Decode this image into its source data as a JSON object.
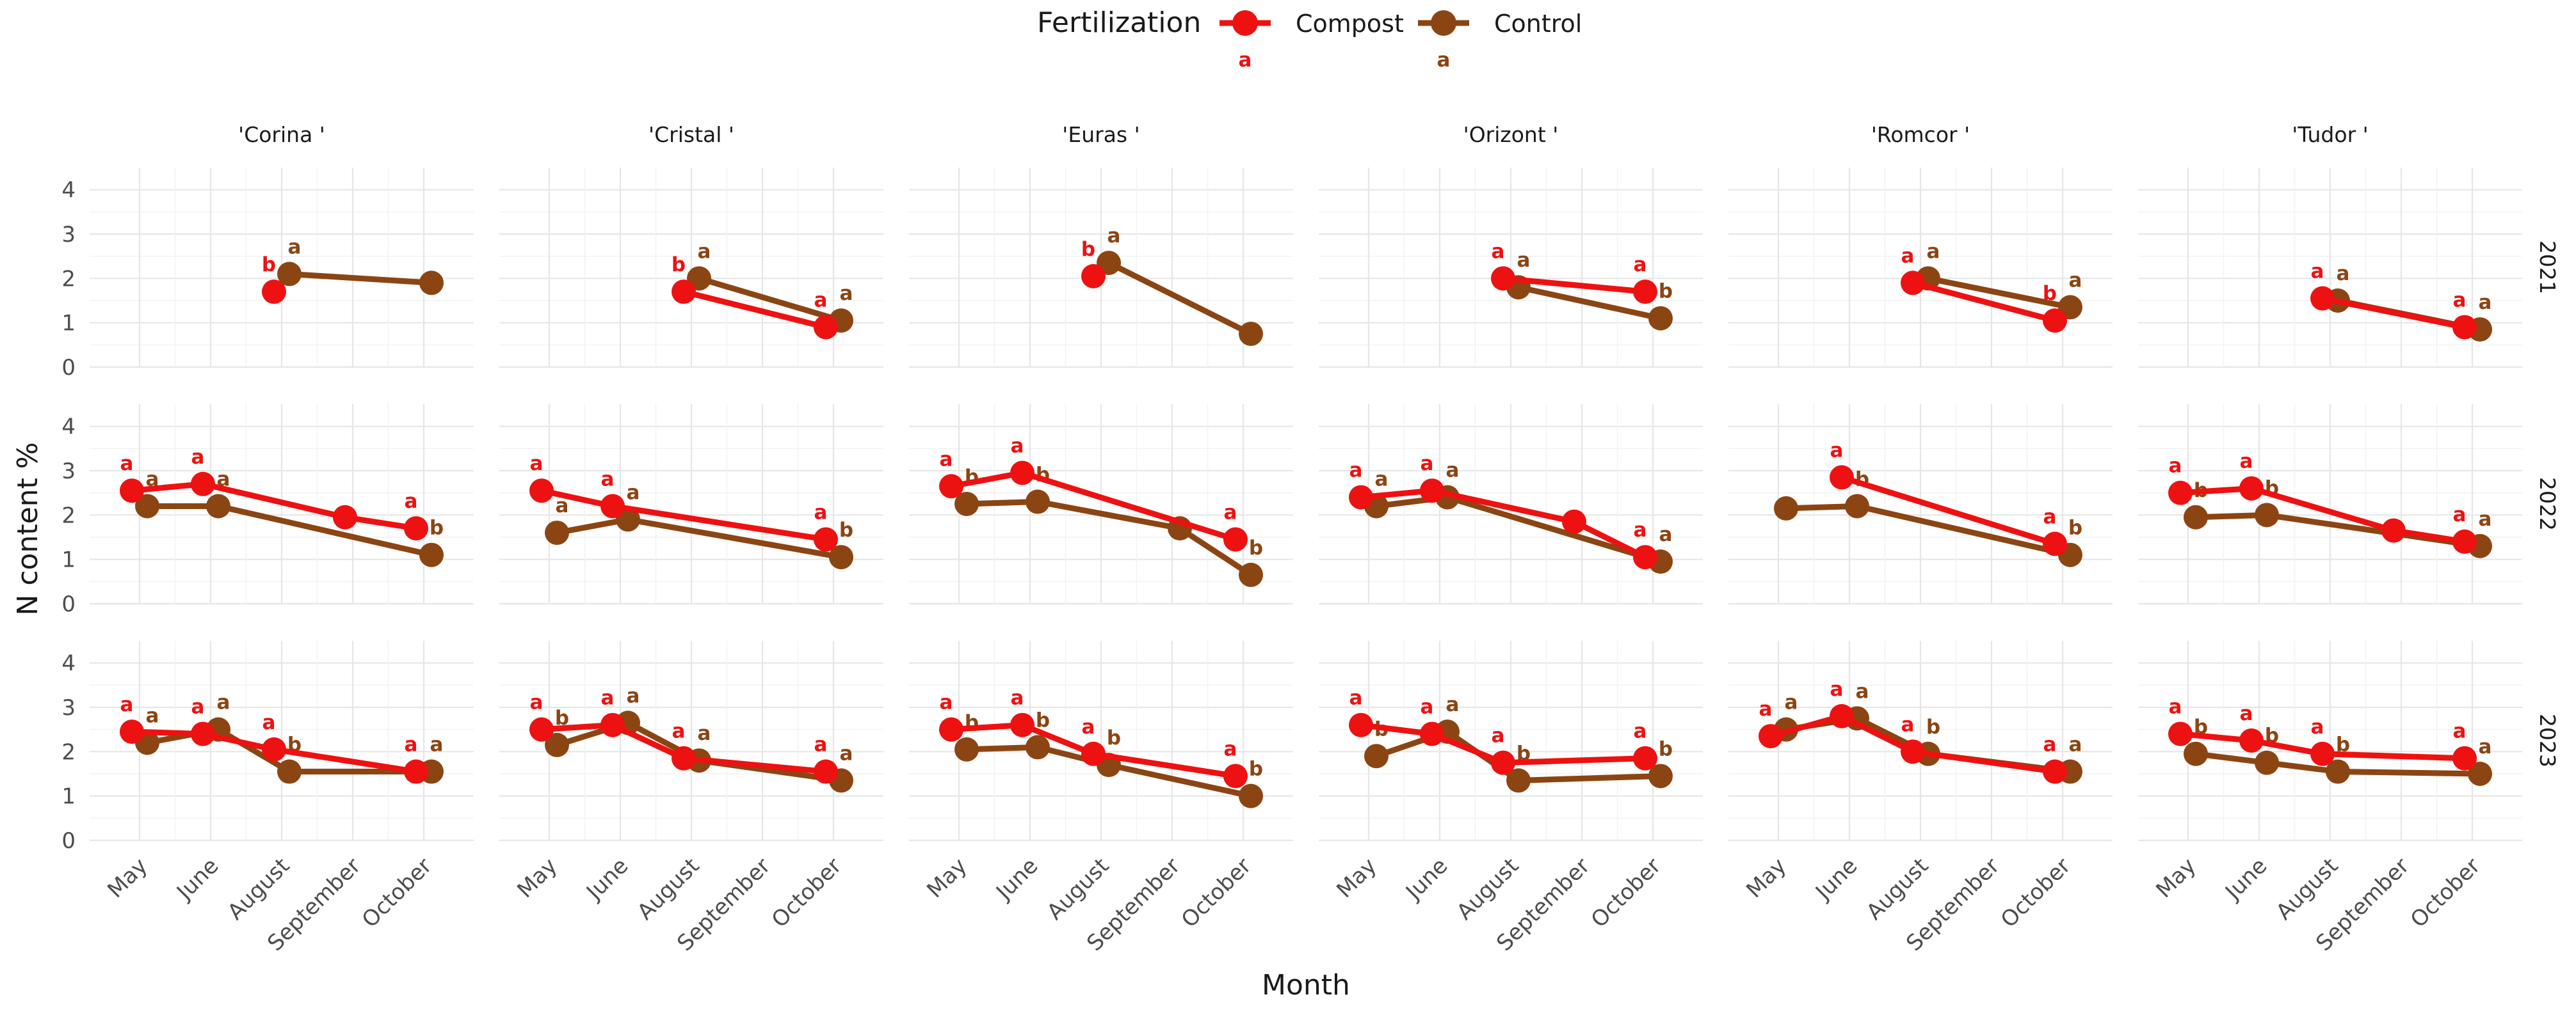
{
  "chart_data": {
    "type": "line",
    "ylabel": "N content %",
    "xlabel": "Month",
    "ylim": [
      0,
      4.5
    ],
    "yticks": [
      0,
      1,
      2,
      3,
      4
    ],
    "months": [
      "May",
      "June",
      "August",
      "September",
      "October"
    ],
    "cultivars": [
      "'Corina  '",
      "'Cristal  '",
      "'Euras  '",
      "'Orizont  '",
      "'Romcor  '",
      "'Tudor  '"
    ],
    "years": [
      "2021",
      "2022",
      "2023"
    ],
    "legend": {
      "title": "Fertilization",
      "position": "top",
      "entries": [
        {
          "name": "Compost",
          "color": "#ee1111",
          "letter": "a"
        },
        {
          "name": "Control",
          "color": "#8b4513",
          "letter": "a"
        }
      ]
    },
    "colors": {
      "Compost": "#ee1111",
      "Control": "#8b4513"
    },
    "panels": [
      {
        "cultivar": "'Corina  '",
        "year": "2021",
        "compost": {
          "months": [
            "August"
          ],
          "values": [
            1.7
          ],
          "letters": [
            "b"
          ]
        },
        "control": {
          "months": [
            "August",
            "October"
          ],
          "values": [
            2.1,
            1.9
          ],
          "letters": [
            "a",
            ""
          ]
        }
      },
      {
        "cultivar": "'Cristal  '",
        "year": "2021",
        "compost": {
          "months": [
            "August",
            "October"
          ],
          "values": [
            1.7,
            0.9
          ],
          "letters": [
            "b",
            "a"
          ]
        },
        "control": {
          "months": [
            "August",
            "October"
          ],
          "values": [
            2.0,
            1.05
          ],
          "letters": [
            "a",
            "a"
          ]
        }
      },
      {
        "cultivar": "'Euras  '",
        "year": "2021",
        "compost": {
          "months": [
            "August"
          ],
          "values": [
            2.05
          ],
          "letters": [
            "b"
          ]
        },
        "control": {
          "months": [
            "August",
            "October"
          ],
          "values": [
            2.35,
            0.75
          ],
          "letters": [
            "a",
            ""
          ]
        }
      },
      {
        "cultivar": "'Orizont  '",
        "year": "2021",
        "compost": {
          "months": [
            "August",
            "October"
          ],
          "values": [
            2.0,
            1.7
          ],
          "letters": [
            "a",
            "a"
          ]
        },
        "control": {
          "months": [
            "August",
            "October"
          ],
          "values": [
            1.8,
            1.1
          ],
          "letters": [
            "a",
            "b"
          ]
        }
      },
      {
        "cultivar": "'Romcor  '",
        "year": "2021",
        "compost": {
          "months": [
            "August",
            "October"
          ],
          "values": [
            1.9,
            1.05
          ],
          "letters": [
            "a",
            "b"
          ]
        },
        "control": {
          "months": [
            "August",
            "October"
          ],
          "values": [
            2.0,
            1.35
          ],
          "letters": [
            "a",
            "a"
          ]
        }
      },
      {
        "cultivar": "'Tudor  '",
        "year": "2021",
        "compost": {
          "months": [
            "August",
            "October"
          ],
          "values": [
            1.55,
            0.9
          ],
          "letters": [
            "a",
            "a"
          ]
        },
        "control": {
          "months": [
            "August",
            "October"
          ],
          "values": [
            1.5,
            0.85
          ],
          "letters": [
            "a",
            "a"
          ]
        }
      },
      {
        "cultivar": "'Corina  '",
        "year": "2022",
        "compost": {
          "months": [
            "May",
            "June",
            "September",
            "October"
          ],
          "values": [
            2.55,
            2.7,
            1.95,
            1.7
          ],
          "letters": [
            "a",
            "a",
            "",
            "a"
          ]
        },
        "control": {
          "months": [
            "May",
            "June",
            "October"
          ],
          "values": [
            2.2,
            2.2,
            1.1
          ],
          "letters": [
            "a",
            "a",
            "b"
          ]
        }
      },
      {
        "cultivar": "'Cristal  '",
        "year": "2022",
        "compost": {
          "months": [
            "May",
            "June",
            "October"
          ],
          "values": [
            2.55,
            2.2,
            1.45
          ],
          "letters": [
            "a",
            "a",
            "a"
          ]
        },
        "control": {
          "months": [
            "May",
            "June",
            "October"
          ],
          "values": [
            1.6,
            1.9,
            1.05
          ],
          "letters": [
            "a",
            "a",
            "b"
          ]
        }
      },
      {
        "cultivar": "'Euras  '",
        "year": "2022",
        "compost": {
          "months": [
            "May",
            "June",
            "October"
          ],
          "values": [
            2.65,
            2.95,
            1.45
          ],
          "letters": [
            "a",
            "a",
            "a"
          ]
        },
        "control": {
          "months": [
            "May",
            "June",
            "September",
            "October"
          ],
          "values": [
            2.25,
            2.3,
            1.7,
            0.65
          ],
          "letters": [
            "b",
            "b",
            "",
            "b"
          ]
        }
      },
      {
        "cultivar": "'Orizont  '",
        "year": "2022",
        "compost": {
          "months": [
            "May",
            "June",
            "September",
            "October"
          ],
          "values": [
            2.4,
            2.55,
            1.85,
            1.05
          ],
          "letters": [
            "a",
            "a",
            "",
            "a"
          ]
        },
        "control": {
          "months": [
            "May",
            "June",
            "October"
          ],
          "values": [
            2.2,
            2.4,
            0.95
          ],
          "letters": [
            "a",
            "a",
            "a"
          ]
        }
      },
      {
        "cultivar": "'Romcor  '",
        "year": "2022",
        "compost": {
          "months": [
            "June",
            "October"
          ],
          "values": [
            2.85,
            1.35
          ],
          "letters": [
            "a",
            "a"
          ]
        },
        "control": {
          "months": [
            "May",
            "June",
            "October"
          ],
          "values": [
            2.15,
            2.2,
            1.1
          ],
          "letters": [
            "",
            "b",
            "b"
          ]
        }
      },
      {
        "cultivar": "'Tudor  '",
        "year": "2022",
        "compost": {
          "months": [
            "May",
            "June",
            "September",
            "October"
          ],
          "values": [
            2.5,
            2.6,
            1.65,
            1.4
          ],
          "letters": [
            "a",
            "a",
            "",
            "a"
          ]
        },
        "control": {
          "months": [
            "May",
            "June",
            "October"
          ],
          "values": [
            1.95,
            2.0,
            1.3
          ],
          "letters": [
            "b",
            "b",
            "a"
          ]
        }
      },
      {
        "cultivar": "'Corina  '",
        "year": "2023",
        "compost": {
          "months": [
            "May",
            "June",
            "August",
            "October"
          ],
          "values": [
            2.45,
            2.4,
            2.05,
            1.55
          ],
          "letters": [
            "a",
            "a",
            "a",
            "a"
          ]
        },
        "control": {
          "months": [
            "May",
            "June",
            "August",
            "October"
          ],
          "values": [
            2.2,
            2.5,
            1.55,
            1.55
          ],
          "letters": [
            "a",
            "a",
            "b",
            "a"
          ]
        }
      },
      {
        "cultivar": "'Cristal  '",
        "year": "2023",
        "compost": {
          "months": [
            "May",
            "June",
            "August",
            "October"
          ],
          "values": [
            2.5,
            2.6,
            1.85,
            1.55
          ],
          "letters": [
            "a",
            "a",
            "a",
            "a"
          ]
        },
        "control": {
          "months": [
            "May",
            "June",
            "August",
            "October"
          ],
          "values": [
            2.15,
            2.65,
            1.8,
            1.35
          ],
          "letters": [
            "b",
            "a",
            "a",
            "a"
          ]
        }
      },
      {
        "cultivar": "'Euras  '",
        "year": "2023",
        "compost": {
          "months": [
            "May",
            "June",
            "August",
            "October"
          ],
          "values": [
            2.5,
            2.6,
            1.95,
            1.45
          ],
          "letters": [
            "a",
            "a",
            "a",
            "a"
          ]
        },
        "control": {
          "months": [
            "May",
            "June",
            "August",
            "October"
          ],
          "values": [
            2.05,
            2.1,
            1.7,
            1.0
          ],
          "letters": [
            "b",
            "b",
            "b",
            "b"
          ]
        }
      },
      {
        "cultivar": "'Orizont  '",
        "year": "2023",
        "compost": {
          "months": [
            "May",
            "June",
            "August",
            "October"
          ],
          "values": [
            2.6,
            2.4,
            1.75,
            1.85
          ],
          "letters": [
            "a",
            "a",
            "a",
            "a"
          ]
        },
        "control": {
          "months": [
            "May",
            "June",
            "August",
            "October"
          ],
          "values": [
            1.9,
            2.45,
            1.35,
            1.45
          ],
          "letters": [
            "b",
            "a",
            "b",
            "b"
          ]
        }
      },
      {
        "cultivar": "'Romcor  '",
        "year": "2023",
        "compost": {
          "months": [
            "May",
            "June",
            "August",
            "October"
          ],
          "values": [
            2.35,
            2.8,
            2.0,
            1.55
          ],
          "letters": [
            "a",
            "a",
            "a",
            "a"
          ]
        },
        "control": {
          "months": [
            "May",
            "June",
            "August",
            "October"
          ],
          "values": [
            2.5,
            2.75,
            1.95,
            1.55
          ],
          "letters": [
            "a",
            "a",
            "b",
            "a"
          ]
        }
      },
      {
        "cultivar": "'Tudor  '",
        "year": "2023",
        "compost": {
          "months": [
            "May",
            "June",
            "August",
            "October"
          ],
          "values": [
            2.4,
            2.25,
            1.95,
            1.85
          ],
          "letters": [
            "a",
            "a",
            "a",
            "a"
          ]
        },
        "control": {
          "months": [
            "May",
            "June",
            "August",
            "October"
          ],
          "values": [
            1.95,
            1.75,
            1.55,
            1.5
          ],
          "letters": [
            "b",
            "b",
            "b",
            "a"
          ]
        }
      }
    ]
  }
}
